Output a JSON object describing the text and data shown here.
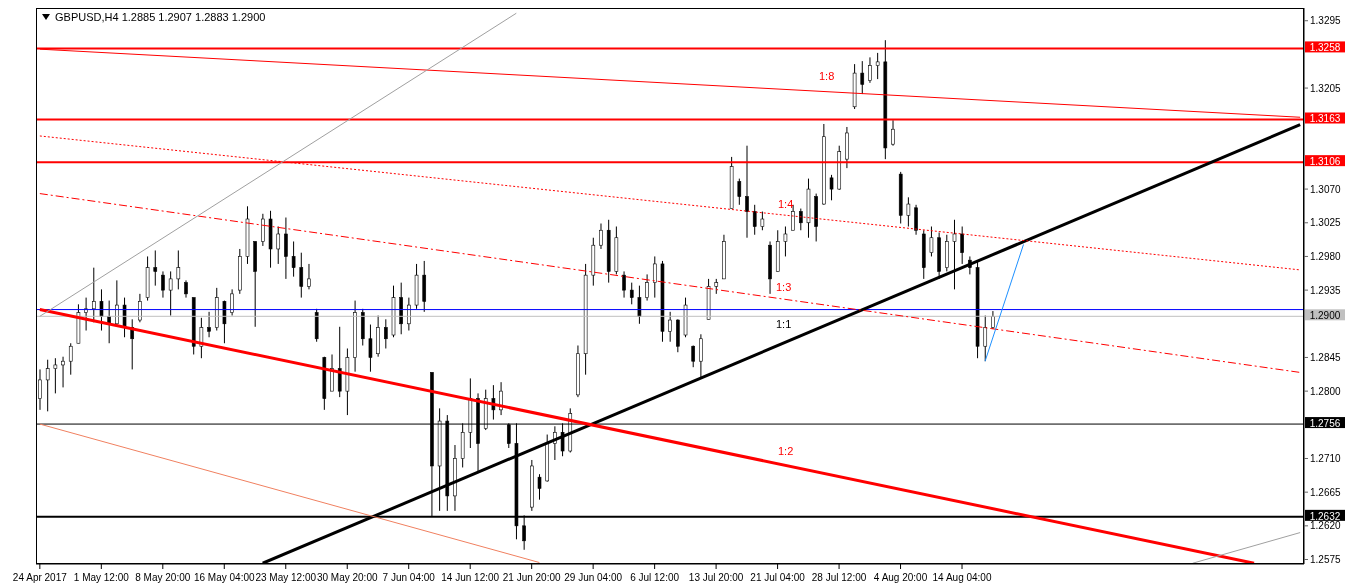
{
  "chart_data": {
    "type": "candlestick",
    "title": "GBPUSD,H4 1.2885 1.2907 1.2883 1.2900",
    "color": "#000000",
    "categories": [
      "24 Apr 2017",
      null,
      null,
      null,
      null,
      null,
      null,
      null,
      "1 May 12:00",
      null,
      null,
      null,
      null,
      null,
      null,
      null,
      "8 May 20:00",
      null,
      null,
      null,
      null,
      null,
      null,
      null,
      "16 May 04:00",
      null,
      null,
      null,
      null,
      null,
      null,
      null,
      "23 May 12:00",
      null,
      null,
      null,
      null,
      null,
      null,
      null,
      "30 May 20:00",
      null,
      null,
      null,
      null,
      null,
      null,
      null,
      "7 Jun 04:00",
      null,
      null,
      null,
      null,
      null,
      null,
      null,
      "14 Jun 12:00",
      null,
      null,
      null,
      null,
      null,
      null,
      null,
      "21 Jun 20:00",
      null,
      null,
      null,
      null,
      null,
      null,
      null,
      "29 Jun 04:00",
      null,
      null,
      null,
      null,
      null,
      null,
      null,
      "6 Jul 12:00",
      null,
      null,
      null,
      null,
      null,
      null,
      null,
      "13 Jul 20:00",
      null,
      null,
      null,
      null,
      null,
      null,
      null,
      "21 Jul 04:00",
      null,
      null,
      null,
      null,
      null,
      null,
      null,
      "28 Jul 12:00",
      null,
      null,
      null,
      null,
      null,
      null,
      null,
      "4 Aug 20:00",
      null,
      null,
      null,
      null,
      null,
      null,
      null,
      "14 Aug 04:00",
      null,
      null,
      null,
      null,
      null,
      null,
      null,
      null,
      null,
      null,
      null,
      null,
      null,
      null,
      null,
      null,
      null,
      null,
      null,
      null,
      null,
      null,
      null,
      null,
      null,
      null,
      null,
      null,
      null,
      null,
      null,
      null,
      null,
      null,
      null,
      null,
      null,
      null,
      null,
      null,
      null,
      null,
      null,
      null
    ],
    "ohlc": [
      [
        1.279,
        1.2829,
        1.2775,
        1.2815
      ],
      [
        1.2815,
        1.2842,
        1.2773,
        1.283
      ],
      [
        1.283,
        1.2844,
        1.2797,
        1.2835
      ],
      [
        1.2835,
        1.2846,
        1.2805,
        1.284
      ],
      [
        1.284,
        1.2864,
        1.2822,
        1.286
      ],
      [
        1.2864,
        1.2916,
        1.2864,
        1.2905
      ],
      [
        1.2905,
        1.2925,
        1.2881,
        1.291
      ],
      [
        1.291,
        1.2965,
        1.2892,
        1.292
      ],
      [
        1.292,
        1.2936,
        1.2881,
        1.29
      ],
      [
        1.29,
        1.2921,
        1.2864,
        1.289
      ],
      [
        1.289,
        1.2948,
        1.2886,
        1.2915
      ],
      [
        1.2915,
        1.2925,
        1.2872,
        1.2885
      ],
      [
        1.2885,
        1.2896,
        1.2829,
        1.287
      ],
      [
        1.2895,
        1.293,
        1.2892,
        1.292
      ],
      [
        1.2925,
        1.298,
        1.2921,
        1.2965
      ],
      [
        1.2965,
        1.2988,
        1.2941,
        1.296
      ],
      [
        1.2955,
        1.296,
        1.2925,
        1.2935
      ],
      [
        1.2935,
        1.296,
        1.2901,
        1.295
      ],
      [
        1.295,
        1.2988,
        1.2936,
        1.2965
      ],
      [
        1.2945,
        1.2948,
        1.2925,
        1.293
      ],
      [
        1.2925,
        1.2925,
        1.2849,
        1.286
      ],
      [
        1.286,
        1.2898,
        1.2844,
        1.2885
      ],
      [
        1.2885,
        1.2906,
        1.2872,
        1.288
      ],
      [
        1.2885,
        1.2938,
        1.2881,
        1.2925
      ],
      [
        1.292,
        1.2921,
        1.2864,
        1.289
      ],
      [
        1.2905,
        1.2936,
        1.2901,
        1.293
      ],
      [
        1.2935,
        1.299,
        1.293,
        1.298
      ],
      [
        1.298,
        1.3047,
        1.297,
        1.303
      ],
      [
        1.3,
        1.3,
        1.2886,
        1.296
      ],
      [
        1.3,
        1.3037,
        1.2994,
        1.303
      ],
      [
        1.303,
        1.3041,
        1.2965,
        1.299
      ],
      [
        1.299,
        1.302,
        1.297,
        1.301
      ],
      [
        1.301,
        1.3032,
        1.295,
        1.298
      ],
      [
        1.298,
        1.3,
        1.2953,
        1.2965
      ],
      [
        1.2965,
        1.2985,
        1.2925,
        1.294
      ],
      [
        1.294,
        1.297,
        1.2936,
        1.295
      ],
      [
        1.2905,
        1.291,
        1.2866,
        1.287
      ],
      [
        1.2845,
        1.2846,
        1.2775,
        1.279
      ],
      [
        1.28,
        1.2849,
        1.28,
        1.283
      ],
      [
        1.283,
        1.2886,
        1.2792,
        1.28
      ],
      [
        1.28,
        1.2857,
        1.2768,
        1.2845
      ],
      [
        1.2845,
        1.2921,
        1.2826,
        1.2905
      ],
      [
        1.2905,
        1.291,
        1.2861,
        1.287
      ],
      [
        1.287,
        1.2889,
        1.2826,
        1.2845
      ],
      [
        1.285,
        1.2901,
        1.2846,
        1.2885
      ],
      [
        1.2885,
        1.2896,
        1.2857,
        1.287
      ],
      [
        1.2875,
        1.2941,
        1.2872,
        1.2925
      ],
      [
        1.2925,
        1.2945,
        1.2876,
        1.289
      ],
      [
        1.289,
        1.2925,
        1.2881,
        1.2915
      ],
      [
        1.2915,
        1.297,
        1.291,
        1.2955
      ],
      [
        1.2955,
        1.2974,
        1.2906,
        1.292
      ],
      [
        1.2825,
        1.2825,
        1.2632,
        1.27
      ],
      [
        1.27,
        1.2777,
        1.264,
        1.276
      ],
      [
        1.276,
        1.2768,
        1.264,
        1.266
      ],
      [
        1.266,
        1.2728,
        1.264,
        1.271
      ],
      [
        1.271,
        1.2757,
        1.2698,
        1.2745
      ],
      [
        1.2745,
        1.2817,
        1.2724,
        1.279
      ],
      [
        1.279,
        1.2797,
        1.2693,
        1.273
      ],
      [
        1.275,
        1.2802,
        1.2748,
        1.279
      ],
      [
        1.279,
        1.2808,
        1.2762,
        1.2775
      ],
      [
        1.2775,
        1.2812,
        1.2768,
        1.28
      ],
      [
        1.2755,
        1.2757,
        1.2724,
        1.273
      ],
      [
        1.273,
        1.2757,
        1.2602,
        1.262
      ],
      [
        1.262,
        1.2634,
        1.2588,
        1.26
      ],
      [
        1.2645,
        1.2708,
        1.264,
        1.27
      ],
      [
        1.2685,
        1.2689,
        1.2655,
        1.267
      ],
      [
        1.268,
        1.2742,
        1.2679,
        1.273
      ],
      [
        1.273,
        1.2753,
        1.2708,
        1.2745
      ],
      [
        1.2745,
        1.2757,
        1.2713,
        1.272
      ],
      [
        1.272,
        1.2777,
        1.2718,
        1.277
      ],
      [
        1.2795,
        1.2861,
        1.2792,
        1.285
      ],
      [
        1.285,
        1.297,
        1.2822,
        1.2955
      ],
      [
        1.2955,
        1.3005,
        1.2941,
        1.2995
      ],
      [
        1.2995,
        1.3024,
        1.299,
        1.3015
      ],
      [
        1.3015,
        1.3029,
        1.2945,
        1.296
      ],
      [
        1.296,
        1.302,
        1.2956,
        1.3005
      ],
      [
        1.2955,
        1.296,
        1.2925,
        1.2935
      ],
      [
        1.2935,
        1.2945,
        1.2916,
        1.2925
      ],
      [
        1.2925,
        1.2941,
        1.289,
        1.29
      ],
      [
        1.2925,
        1.2956,
        1.2921,
        1.2945
      ],
      [
        1.2945,
        1.298,
        1.2925,
        1.297
      ],
      [
        1.297,
        1.2974,
        1.2866,
        1.288
      ],
      [
        1.288,
        1.2906,
        1.2866,
        1.2895
      ],
      [
        1.2895,
        1.2896,
        1.2852,
        1.286
      ],
      [
        1.2875,
        1.2925,
        1.2872,
        1.2915
      ],
      [
        1.286,
        1.2861,
        1.2832,
        1.284
      ],
      [
        1.284,
        1.2876,
        1.2817,
        1.287
      ],
      [
        1.2896,
        1.295,
        1.2896,
        1.294
      ],
      [
        1.294,
        1.295,
        1.293,
        1.2945
      ],
      [
        1.295,
        1.3009,
        1.295,
        1.3
      ],
      [
        1.3044,
        1.3113,
        1.3044,
        1.31
      ],
      [
        1.308,
        1.3084,
        1.3049,
        1.306
      ],
      [
        1.306,
        1.3128,
        1.3005,
        1.304
      ],
      [
        1.304,
        1.3049,
        1.3009,
        1.302
      ],
      [
        1.302,
        1.304,
        1.3015,
        1.303
      ],
      [
        1.2995,
        1.3,
        1.293,
        1.295
      ],
      [
        1.296,
        1.3015,
        1.296,
        1.3
      ],
      [
        1.3,
        1.302,
        1.298,
        1.301
      ],
      [
        1.3015,
        1.3049,
        1.3015,
        1.304
      ],
      [
        1.304,
        1.3044,
        1.3015,
        1.3025
      ],
      [
        1.3025,
        1.3084,
        1.3005,
        1.307
      ],
      [
        1.306,
        1.3064,
        1.3,
        1.302
      ],
      [
        1.305,
        1.3157,
        1.3049,
        1.314
      ],
      [
        1.3085,
        1.3089,
        1.3055,
        1.307
      ],
      [
        1.307,
        1.3128,
        1.3069,
        1.312
      ],
      [
        1.311,
        1.3153,
        1.3098,
        1.3145
      ],
      [
        1.318,
        1.3237,
        1.3177,
        1.3225
      ],
      [
        1.3225,
        1.3241,
        1.3197,
        1.321
      ],
      [
        1.3215,
        1.3246,
        1.3212,
        1.3235
      ],
      [
        1.3235,
        1.3252,
        1.3217,
        1.324
      ],
      [
        1.324,
        1.3269,
        1.311,
        1.3125
      ],
      [
        1.313,
        1.3162,
        1.3128,
        1.315
      ],
      [
        1.309,
        1.3093,
        1.3024,
        1.3035
      ],
      [
        1.3035,
        1.3059,
        1.302,
        1.305
      ],
      [
        1.3045,
        1.3049,
        1.3009,
        1.3015
      ],
      [
        1.301,
        1.3015,
        1.295,
        1.2965
      ],
      [
        1.2985,
        1.302,
        1.298,
        1.3005
      ],
      [
        1.3005,
        1.3012,
        1.295,
        1.296
      ],
      [
        1.2965,
        1.3009,
        1.296,
        1.3
      ],
      [
        1.3,
        1.3029,
        1.2936,
        1.301
      ],
      [
        1.301,
        1.302,
        1.297,
        1.2985
      ],
      [
        1.2975,
        1.298,
        1.2956,
        1.2965
      ],
      [
        1.2965,
        1.2974,
        1.2844,
        1.286
      ],
      [
        1.286,
        1.2901,
        1.284,
        1.2885
      ],
      [
        1.2885,
        1.2907,
        1.2883,
        1.29
      ],
      null,
      null,
      null,
      null,
      null,
      null,
      null,
      null,
      null,
      null,
      null,
      null,
      null,
      null,
      null,
      null,
      null,
      null,
      null,
      null,
      null,
      null,
      null,
      null,
      null,
      null,
      null,
      null,
      null,
      null,
      null,
      null,
      null,
      null,
      null,
      null,
      null,
      null,
      null,
      null
    ],
    "series": [
      {
        "type": "line",
        "color": "#000000",
        "line_style": "solid",
        "values": [
          null,
          null,
          null,
          null,
          null,
          null,
          null,
          null,
          null,
          null,
          null,
          null,
          null,
          null,
          null,
          null,
          null,
          null,
          null,
          null,
          null,
          null,
          null,
          null,
          null,
          null,
          null,
          null,
          null,
          1.257,
          null,
          null,
          null,
          null,
          null,
          null,
          null,
          null,
          null,
          null,
          null,
          null,
          null,
          null,
          null,
          null,
          null,
          null,
          null,
          null,
          null,
          null,
          null,
          null,
          null,
          null,
          null,
          null,
          null,
          null,
          null,
          null,
          null,
          null,
          null,
          null,
          null,
          null,
          null,
          null,
          null,
          null,
          null,
          null,
          null,
          null,
          null,
          null,
          null,
          null,
          null,
          null,
          null,
          null,
          null,
          null,
          null,
          null,
          null,
          null,
          null,
          null,
          null,
          null,
          null,
          null,
          null,
          null,
          null,
          null,
          null,
          null,
          null,
          null,
          null,
          null,
          null,
          null,
          null,
          null,
          null,
          null,
          null,
          null,
          null,
          null,
          null,
          null,
          null,
          null,
          null,
          null,
          null,
          null,
          null,
          null,
          null,
          null,
          null,
          null,
          null,
          null,
          null,
          null,
          null,
          null,
          null,
          null,
          null,
          null,
          null,
          null,
          null,
          null,
          null,
          null,
          null,
          null,
          null,
          null,
          null,
          null,
          null,
          null,
          null,
          null,
          null,
          null,
          null,
          null,
          null,
          null,
          null,
          null,
          1.3156
        ]
      },
      {
        "type": "line",
        "color": "#ff0000",
        "line_style": "solid",
        "values": [
          1.2909,
          null,
          null,
          null,
          null,
          null,
          null,
          null,
          null,
          null,
          null,
          null,
          null,
          null,
          null,
          null,
          null,
          null,
          null,
          null,
          null,
          null,
          null,
          null,
          null,
          null,
          null,
          null,
          null,
          null,
          null,
          null,
          null,
          null,
          null,
          null,
          null,
          null,
          null,
          null,
          null,
          null,
          null,
          null,
          null,
          null,
          null,
          null,
          null,
          null,
          null,
          null,
          null,
          null,
          null,
          null,
          null,
          null,
          null,
          null,
          null,
          null,
          null,
          null,
          null,
          null,
          null,
          null,
          null,
          null,
          null,
          null,
          null,
          null,
          null,
          null,
          null,
          null,
          null,
          null,
          null,
          null,
          null,
          null,
          null,
          null,
          null,
          null,
          null,
          null,
          null,
          null,
          null,
          null,
          null,
          null,
          null,
          null,
          null,
          null,
          null,
          null,
          null,
          null,
          null,
          null,
          null,
          null,
          null,
          null,
          null,
          null,
          null,
          null,
          null,
          null,
          null,
          null,
          null,
          null,
          null,
          null,
          null,
          null,
          null,
          null,
          null,
          null,
          null,
          null,
          null,
          null,
          null,
          null,
          null,
          null,
          null,
          null,
          null,
          null,
          null,
          null,
          null,
          null,
          null,
          null,
          null,
          null,
          null,
          null,
          null,
          null,
          null,
          null,
          null,
          null,
          null,
          null,
          1.257,
          null,
          null,
          null,
          null,
          null,
          null
        ]
      },
      {
        "type": "line",
        "color": "#ff0000",
        "line_style": "solid",
        "values": [
          1.3257,
          null,
          null,
          null,
          null,
          null,
          null,
          null,
          null,
          null,
          null,
          null,
          null,
          null,
          null,
          null,
          null,
          null,
          null,
          null,
          null,
          null,
          null,
          null,
          null,
          null,
          null,
          null,
          null,
          null,
          null,
          null,
          null,
          null,
          null,
          null,
          null,
          null,
          null,
          null,
          null,
          null,
          null,
          null,
          null,
          null,
          null,
          null,
          null,
          null,
          null,
          null,
          null,
          null,
          null,
          null,
          null,
          null,
          null,
          null,
          null,
          null,
          null,
          null,
          null,
          null,
          null,
          null,
          null,
          null,
          null,
          null,
          null,
          null,
          null,
          null,
          null,
          null,
          null,
          null,
          null,
          null,
          null,
          null,
          null,
          null,
          null,
          null,
          null,
          null,
          null,
          null,
          null,
          null,
          null,
          null,
          null,
          null,
          null,
          null,
          null,
          null,
          null,
          null,
          null,
          null,
          null,
          null,
          null,
          null,
          null,
          null,
          null,
          null,
          null,
          null,
          null,
          null,
          null,
          null,
          null,
          null,
          null,
          null,
          null,
          null,
          null,
          null,
          null,
          null,
          null,
          null,
          null,
          null,
          null,
          null,
          null,
          null,
          null,
          null,
          null,
          null,
          null,
          null,
          null,
          null,
          null,
          null,
          null,
          null,
          null,
          null,
          null,
          null,
          null,
          null,
          null,
          null,
          null,
          null,
          null,
          null,
          null,
          null,
          1.3166
        ]
      },
      {
        "type": "line",
        "color": "#ff0000",
        "line_style": "dotted",
        "values": [
          1.3141,
          null,
          null,
          null,
          null,
          null,
          null,
          null,
          null,
          null,
          null,
          null,
          null,
          null,
          null,
          null,
          null,
          null,
          null,
          null,
          null,
          null,
          null,
          null,
          null,
          null,
          null,
          null,
          null,
          null,
          null,
          null,
          null,
          null,
          null,
          null,
          null,
          null,
          null,
          null,
          null,
          null,
          null,
          null,
          null,
          null,
          null,
          null,
          null,
          null,
          null,
          null,
          null,
          null,
          null,
          null,
          null,
          null,
          null,
          null,
          null,
          null,
          null,
          null,
          null,
          null,
          null,
          null,
          null,
          null,
          null,
          null,
          null,
          null,
          null,
          null,
          null,
          null,
          null,
          null,
          null,
          null,
          null,
          null,
          null,
          null,
          null,
          null,
          null,
          null,
          null,
          null,
          null,
          null,
          null,
          null,
          null,
          null,
          null,
          null,
          null,
          null,
          null,
          null,
          null,
          null,
          null,
          null,
          null,
          null,
          null,
          null,
          null,
          null,
          null,
          null,
          null,
          null,
          null,
          null,
          null,
          null,
          null,
          null,
          null,
          null,
          null,
          null,
          null,
          null,
          null,
          null,
          null,
          null,
          null,
          null,
          null,
          null,
          null,
          null,
          null,
          null,
          null,
          null,
          null,
          null,
          null,
          null,
          null,
          null,
          null,
          null,
          null,
          null,
          null,
          null,
          null,
          null,
          null,
          null,
          null,
          null,
          null,
          null,
          1.2962
        ]
      },
      {
        "type": "line",
        "color": "#ff0000",
        "line_style": "dashed",
        "values": [
          1.3064,
          null,
          null,
          null,
          null,
          null,
          null,
          null,
          null,
          null,
          null,
          null,
          null,
          null,
          null,
          null,
          null,
          null,
          null,
          null,
          null,
          null,
          null,
          null,
          null,
          null,
          null,
          null,
          null,
          null,
          null,
          null,
          null,
          null,
          null,
          null,
          null,
          null,
          null,
          null,
          null,
          null,
          null,
          null,
          null,
          null,
          null,
          null,
          null,
          null,
          null,
          null,
          null,
          null,
          null,
          null,
          null,
          null,
          null,
          null,
          null,
          null,
          null,
          null,
          null,
          null,
          null,
          null,
          null,
          null,
          null,
          null,
          null,
          null,
          null,
          null,
          null,
          null,
          null,
          null,
          null,
          null,
          null,
          null,
          null,
          null,
          null,
          null,
          null,
          null,
          null,
          null,
          null,
          null,
          null,
          null,
          null,
          null,
          null,
          null,
          null,
          null,
          null,
          null,
          null,
          null,
          null,
          null,
          null,
          null,
          null,
          null,
          null,
          null,
          null,
          null,
          null,
          null,
          null,
          null,
          null,
          null,
          null,
          null,
          null,
          null,
          null,
          null,
          null,
          null,
          null,
          null,
          null,
          null,
          null,
          null,
          null,
          null,
          null,
          null,
          null,
          null,
          null,
          null,
          null,
          null,
          null,
          null,
          null,
          null,
          null,
          null,
          null,
          null,
          null,
          null,
          null,
          null,
          null,
          null,
          null,
          null,
          null,
          null,
          1.2825
        ]
      },
      {
        "type": "line",
        "color": "#f08060",
        "line_style": "solid",
        "values": [
          1.2756,
          null,
          null,
          null,
          null,
          null,
          null,
          null,
          null,
          null,
          null,
          null,
          null,
          null,
          null,
          null,
          null,
          null,
          null,
          null,
          null,
          null,
          null,
          null,
          null,
          null,
          null,
          null,
          null,
          null,
          null,
          null,
          null,
          null,
          null,
          null,
          null,
          null,
          null,
          null,
          null,
          null,
          null,
          null,
          null,
          null,
          null,
          null,
          null,
          null,
          null,
          null,
          null,
          null,
          null,
          null,
          null,
          null,
          null,
          null,
          null,
          null,
          null,
          null,
          null,
          1.2571,
          null,
          null,
          null,
          null,
          null,
          null,
          null,
          null,
          null,
          null,
          null,
          null,
          null,
          null,
          null,
          null,
          null,
          null,
          null,
          null,
          null,
          null,
          null,
          null,
          null,
          null,
          null,
          null,
          null,
          null,
          null,
          null,
          null,
          null,
          null,
          null,
          null,
          null,
          null,
          null,
          null,
          null,
          null,
          null,
          null,
          null,
          null,
          null,
          null,
          null,
          null,
          null,
          null,
          null,
          null,
          null,
          null,
          null,
          null,
          null,
          null,
          null,
          null,
          null,
          null,
          null,
          null,
          null,
          null,
          null,
          null,
          null,
          null,
          null,
          null,
          null,
          null,
          null,
          null,
          null,
          null,
          null,
          null,
          null,
          null,
          null,
          null,
          null,
          null,
          null,
          null,
          null,
          null,
          null,
          null,
          null,
          null,
          null,
          null
        ]
      },
      {
        "type": "line",
        "color": "#a0a0a0",
        "line_style": "solid",
        "values": [
          1.29,
          null,
          null,
          null,
          null,
          null,
          null,
          null,
          null,
          null,
          null,
          null,
          null,
          null,
          null,
          null,
          null,
          null,
          null,
          null,
          null,
          null,
          null,
          null,
          null,
          null,
          null,
          null,
          null,
          null,
          null,
          null,
          null,
          null,
          null,
          null,
          null,
          null,
          null,
          null,
          null,
          null,
          null,
          null,
          null,
          null,
          null,
          null,
          null,
          null,
          null,
          null,
          null,
          null,
          null,
          null,
          null,
          null,
          null,
          null,
          null,
          null,
          1.3305,
          null,
          null,
          null,
          null,
          null,
          null,
          null,
          null,
          null,
          null,
          null,
          null,
          null,
          null,
          null,
          null,
          null,
          null,
          null,
          null,
          null,
          null,
          null,
          null,
          null,
          null,
          null,
          null,
          null,
          null,
          null,
          null,
          null,
          null,
          null,
          null,
          null,
          null,
          null,
          null,
          null,
          null,
          null,
          null,
          null,
          null,
          null,
          null,
          null,
          null,
          null,
          null,
          null,
          null,
          null,
          null,
          null,
          null,
          null,
          null,
          null,
          null,
          null,
          null,
          null,
          null,
          null,
          null,
          null,
          null,
          null,
          null,
          null,
          null,
          null,
          null,
          null,
          null,
          null,
          null,
          null,
          null,
          null,
          null,
          null,
          null,
          null,
          null,
          null,
          null,
          null,
          null,
          null,
          null,
          null,
          null,
          null,
          null,
          null,
          null,
          null,
          null
        ]
      },
      {
        "type": "line",
        "color": "#a0a0a0",
        "line_style": "solid",
        "values": [
          null,
          null,
          null,
          null,
          null,
          null,
          null,
          null,
          null,
          null,
          null,
          null,
          null,
          null,
          null,
          null,
          null,
          null,
          null,
          null,
          null,
          null,
          null,
          null,
          null,
          null,
          null,
          null,
          null,
          null,
          null,
          null,
          null,
          null,
          null,
          null,
          null,
          null,
          null,
          null,
          null,
          null,
          null,
          null,
          null,
          null,
          null,
          null,
          null,
          null,
          null,
          null,
          null,
          null,
          null,
          null,
          null,
          null,
          null,
          null,
          null,
          null,
          null,
          null,
          null,
          null,
          null,
          null,
          null,
          null,
          null,
          null,
          null,
          null,
          null,
          null,
          null,
          null,
          null,
          null,
          null,
          null,
          null,
          null,
          null,
          null,
          null,
          null,
          null,
          null,
          null,
          null,
          null,
          null,
          null,
          null,
          null,
          null,
          null,
          null,
          null,
          null,
          null,
          null,
          null,
          null,
          null,
          null,
          null,
          null,
          null,
          null,
          null,
          null,
          null,
          null,
          null,
          null,
          null,
          null,
          null,
          null,
          null,
          null,
          null,
          null,
          null,
          null,
          null,
          null,
          null,
          null,
          null,
          null,
          null,
          null,
          null,
          null,
          null,
          null,
          null,
          null,
          null,
          null,
          null,
          null,
          null,
          null,
          null,
          null,
          1.257,
          null,
          null,
          null,
          null,
          null,
          null,
          null,
          null,
          null,
          null,
          null,
          null,
          null,
          1.2611
        ]
      },
      {
        "type": "line",
        "color": "#1e90ff",
        "line_style": "solid",
        "values": [
          null,
          null,
          null,
          null,
          null,
          null,
          null,
          null,
          null,
          null,
          null,
          null,
          null,
          null,
          null,
          null,
          null,
          null,
          null,
          null,
          null,
          null,
          null,
          null,
          null,
          null,
          null,
          null,
          null,
          null,
          null,
          null,
          null,
          null,
          null,
          null,
          null,
          null,
          null,
          null,
          null,
          null,
          null,
          null,
          null,
          null,
          null,
          null,
          null,
          null,
          null,
          null,
          null,
          null,
          null,
          null,
          null,
          null,
          null,
          null,
          null,
          null,
          null,
          null,
          null,
          null,
          null,
          null,
          null,
          null,
          null,
          null,
          null,
          null,
          null,
          null,
          null,
          null,
          null,
          null,
          null,
          null,
          null,
          null,
          null,
          null,
          null,
          null,
          null,
          null,
          null,
          null,
          null,
          null,
          null,
          null,
          null,
          null,
          null,
          null,
          null,
          null,
          null,
          null,
          null,
          null,
          null,
          null,
          null,
          null,
          null,
          null,
          null,
          null,
          null,
          null,
          null,
          null,
          null,
          null,
          null,
          null,
          null,
          1.284,
          null,
          null,
          null,
          null,
          1.2996,
          null,
          null,
          null,
          null,
          null,
          null,
          null,
          null,
          null,
          null,
          null,
          null,
          null,
          null,
          null,
          null,
          null,
          null,
          null,
          null,
          null,
          null,
          null,
          null,
          null,
          null,
          null,
          null,
          null,
          null,
          null,
          null,
          null,
          null,
          null,
          null
        ]
      }
    ],
    "ref_lines": [
      {
        "axis": "y",
        "value": 1.3258,
        "label": "1.3258",
        "color": "#ff0000"
      },
      {
        "axis": "y",
        "value": 1.3163,
        "label": "1.3163",
        "color": "#ff0000"
      },
      {
        "axis": "y",
        "value": 1.3106,
        "label": "1.3106",
        "color": "#ff0000"
      },
      {
        "axis": "y",
        "value": 1.2909,
        "color": "#0000ff"
      },
      {
        "axis": "y",
        "value": 1.29,
        "label": "1.2900",
        "color": "#c0c0c0"
      },
      {
        "axis": "y",
        "value": 1.2756,
        "label": "1.2756",
        "color": "#000000"
      },
      {
        "axis": "y",
        "value": 1.2632,
        "label": "1.2632",
        "color": "#000000"
      }
    ],
    "annotations": [
      "1:8",
      "1:4",
      "1:3",
      "1:1",
      "1:2"
    ],
    "ylim": [
      1.2569,
      1.3312
    ],
    "yticks": [
      1.3295,
      1.3205,
      {
        "value": 1.307,
        "label": "1.3070"
      },
      1.3025,
      {
        "value": 1.298,
        "label": "1.2980"
      },
      1.2935,
      1.2845,
      {
        "value": 1.28,
        "label": "1.2800"
      },
      {
        "value": 1.271,
        "label": "1.2710"
      },
      1.2665,
      {
        "value": 1.262,
        "label": "1.2620"
      },
      1.2575
    ]
  }
}
